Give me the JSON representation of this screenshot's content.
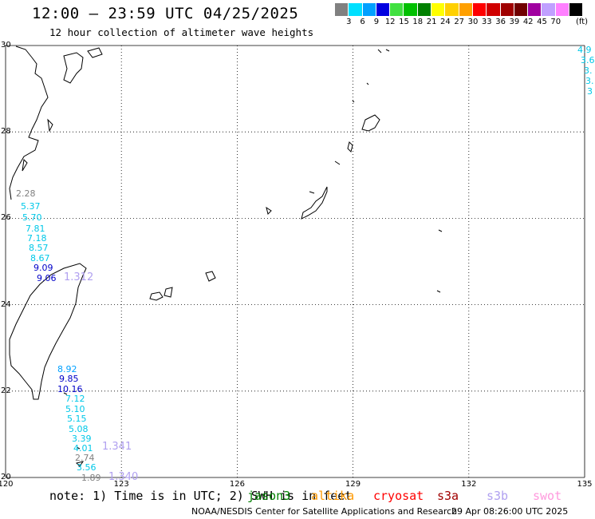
{
  "header": {
    "title": "12:00 – 23:59 UTC 04/25/2025",
    "subtitle": "12 hour collection of altimeter wave heights"
  },
  "scale": {
    "colors": [
      "#808080",
      "#00e0ff",
      "#00a0ff",
      "#0000e0",
      "#40e040",
      "#00c000",
      "#008000",
      "#ffff00",
      "#ffd000",
      "#ffa000",
      "#ff0000",
      "#d00000",
      "#a00000",
      "#700000",
      "#a000a0",
      "#c0a0ff",
      "#ff80ff",
      "#000000"
    ],
    "labels": [
      "3",
      "6",
      "9",
      "12",
      "15",
      "18",
      "21",
      "24",
      "27",
      "30",
      "33",
      "36",
      "39",
      "42",
      "45",
      "70"
    ],
    "unit": "(ft)"
  },
  "map": {
    "lon_labels": [
      "120",
      "123",
      "126",
      "129",
      "132",
      "135"
    ],
    "lat_labels": [
      "30",
      "28",
      "26",
      "24",
      "22",
      "20"
    ]
  },
  "wave_labels_left": [
    {
      "text": "2.28",
      "color": "#808080"
    },
    {
      "text": "5.37",
      "color": "#00c8e8"
    },
    {
      "text": "5.70",
      "color": "#00c8e8"
    },
    {
      "text": "7.81",
      "color": "#00c8e8"
    },
    {
      "text": "7.18",
      "color": "#00c8e8"
    },
    {
      "text": "8.57",
      "color": "#00c8e8"
    },
    {
      "text": "8.67",
      "color": "#00c8e8"
    },
    {
      "text": "9.09",
      "color": "#0000c8"
    },
    {
      "text": "9.06",
      "color": "#0000c8"
    },
    {
      "text": "1.312",
      "color": "#b0a0f0"
    },
    {
      "text": "8.92",
      "color": "#00a0ff"
    },
    {
      "text": "9.85",
      "color": "#0000c8"
    },
    {
      "text": "10.16",
      "color": "#0000c8"
    },
    {
      "text": "7.12",
      "color": "#00c8e8"
    },
    {
      "text": "5.10",
      "color": "#00c8e8"
    },
    {
      "text": "5.15",
      "color": "#00c8e8"
    },
    {
      "text": "5.08",
      "color": "#00c8e8"
    },
    {
      "text": "3.39",
      "color": "#00c8e8"
    },
    {
      "text": "1.341",
      "color": "#b0a0f0"
    },
    {
      "text": "4.01",
      "color": "#00c8e8"
    },
    {
      "text": "2.74",
      "color": "#808080"
    },
    {
      "text": "3.56",
      "color": "#00c8e8"
    },
    {
      "text": "1.89",
      "color": "#808080"
    },
    {
      "text": "1.340",
      "color": "#b0a0f0"
    }
  ],
  "wave_labels_right": [
    {
      "text": "4.9",
      "color": "#00c8e8"
    },
    {
      "text": "3.6",
      "color": "#00c8e8"
    },
    {
      "text": "3.",
      "color": "#00c8e8"
    },
    {
      "text": "3.",
      "color": "#00c8e8"
    },
    {
      "text": "3",
      "color": "#00c8e8"
    }
  ],
  "footer": {
    "note": "note: 1) Time is in UTC; 2) SWH is in feet",
    "satellites": [
      {
        "name": "jason3",
        "color": "#008000"
      },
      {
        "name": "altika",
        "color": "#ff9900"
      },
      {
        "name": "cryosat",
        "color": "#ff0000"
      },
      {
        "name": "s3a",
        "color": "#a00000"
      },
      {
        "name": "s3b",
        "color": "#b0a0f0"
      },
      {
        "name": "swot",
        "color": "#ff99dd"
      }
    ],
    "credit": "NOAA/NESDIS Center for Satellite Applications and Research",
    "timestamp": "29 Apr 08:26:00 UTC 2025"
  }
}
